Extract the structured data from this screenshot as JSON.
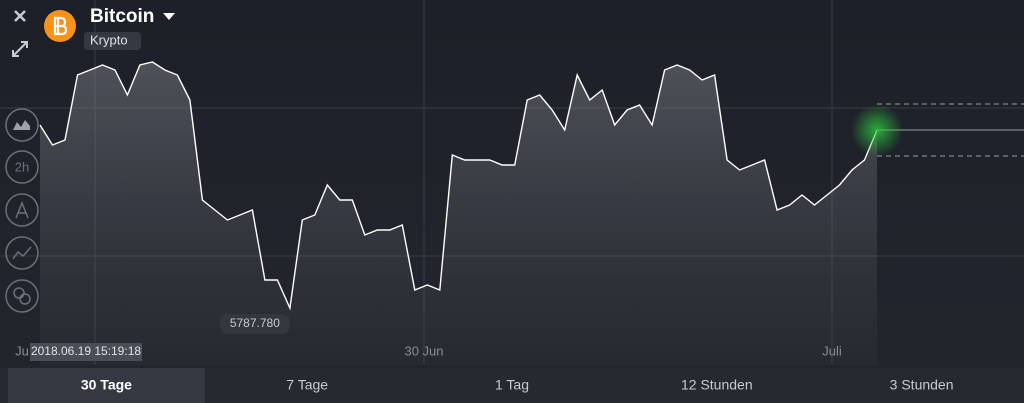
{
  "header": {
    "title": "Bitcoin",
    "subtitle": "Krypto"
  },
  "sidebar": {
    "icon_label": "2h"
  },
  "chart_data": {
    "type": "line",
    "color": "#ffffff",
    "values": [
      6520,
      6440,
      6460,
      6720,
      6740,
      6760,
      6740,
      6640,
      6760,
      6772,
      6740,
      6720,
      6620,
      6220,
      6180,
      6140,
      6160,
      6180,
      5900,
      5900,
      5787.78,
      6140,
      6160,
      6280,
      6220,
      6220,
      6080,
      6100,
      6100,
      6120,
      5860,
      5880,
      5860,
      6400,
      6380,
      6380,
      6380,
      6360,
      6360,
      6620,
      6640,
      6580,
      6500,
      6720,
      6620,
      6660,
      6520,
      6580,
      6600,
      6520,
      6740,
      6760,
      6740,
      6700,
      6720,
      6380,
      6340,
      6360,
      6380,
      6180,
      6200,
      6240,
      6200,
      6240,
      6280,
      6340,
      6380,
      6500
    ],
    "value_labels": [
      null,
      null,
      null,
      null,
      null,
      null,
      null,
      null,
      null,
      null,
      null,
      null,
      null,
      null,
      null,
      null,
      null,
      null,
      null,
      null,
      "5787.780",
      null,
      null,
      null,
      null,
      null,
      null,
      null,
      null,
      null,
      null,
      null,
      null,
      null,
      null,
      null,
      null,
      null,
      null,
      null,
      null,
      null,
      null,
      null,
      null,
      null,
      null,
      null,
      null,
      null,
      null,
      null,
      null,
      null,
      null,
      null,
      null,
      null,
      null,
      null,
      null,
      null,
      null,
      null,
      null,
      null,
      null,
      null
    ],
    "ylim": [
      5700,
      6900
    ],
    "x_labels": [
      "Ju",
      "30 Jun",
      "Juli"
    ],
    "cursor_time": "2018.06.19 15:19:18"
  },
  "tabs": [
    "30 Tage",
    "7 Tage",
    "1 Tag",
    "12 Stunden",
    "3 Stunden"
  ],
  "active_tab": 0
}
